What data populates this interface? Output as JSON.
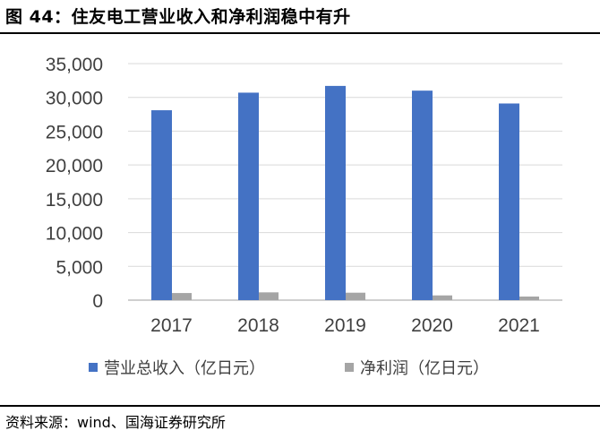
{
  "header": {
    "figure_label": "图 44：",
    "title": "住友电工营业收入和净利润稳中有升"
  },
  "footer": {
    "source": "资料来源：wind、国海证券研究所"
  },
  "colors": {
    "revenue": "#4472C4",
    "profit": "#A5A5A5",
    "grid": "#D9D9D9",
    "axis": "#BFBFBF",
    "text": "#404040"
  },
  "chart_data": {
    "type": "bar",
    "title": "住友电工营业收入和净利润稳中有升",
    "xlabel": "",
    "ylabel": "",
    "categories": [
      "2017",
      "2018",
      "2019",
      "2020",
      "2021"
    ],
    "series": [
      {
        "name": "营业总收入（亿日元）",
        "values": [
          28100,
          30700,
          31700,
          31000,
          29100
        ]
      },
      {
        "name": "净利润（亿日元）",
        "values": [
          1050,
          1150,
          1100,
          700,
          530
        ]
      }
    ],
    "ylim": [
      0,
      35000
    ],
    "yticks": [
      0,
      5000,
      10000,
      15000,
      20000,
      25000,
      30000,
      35000
    ],
    "ytick_labels": [
      "0",
      "5,000",
      "10,000",
      "15,000",
      "20,000",
      "25,000",
      "30,000",
      "35,000"
    ],
    "grid": true,
    "legend_position": "bottom"
  }
}
